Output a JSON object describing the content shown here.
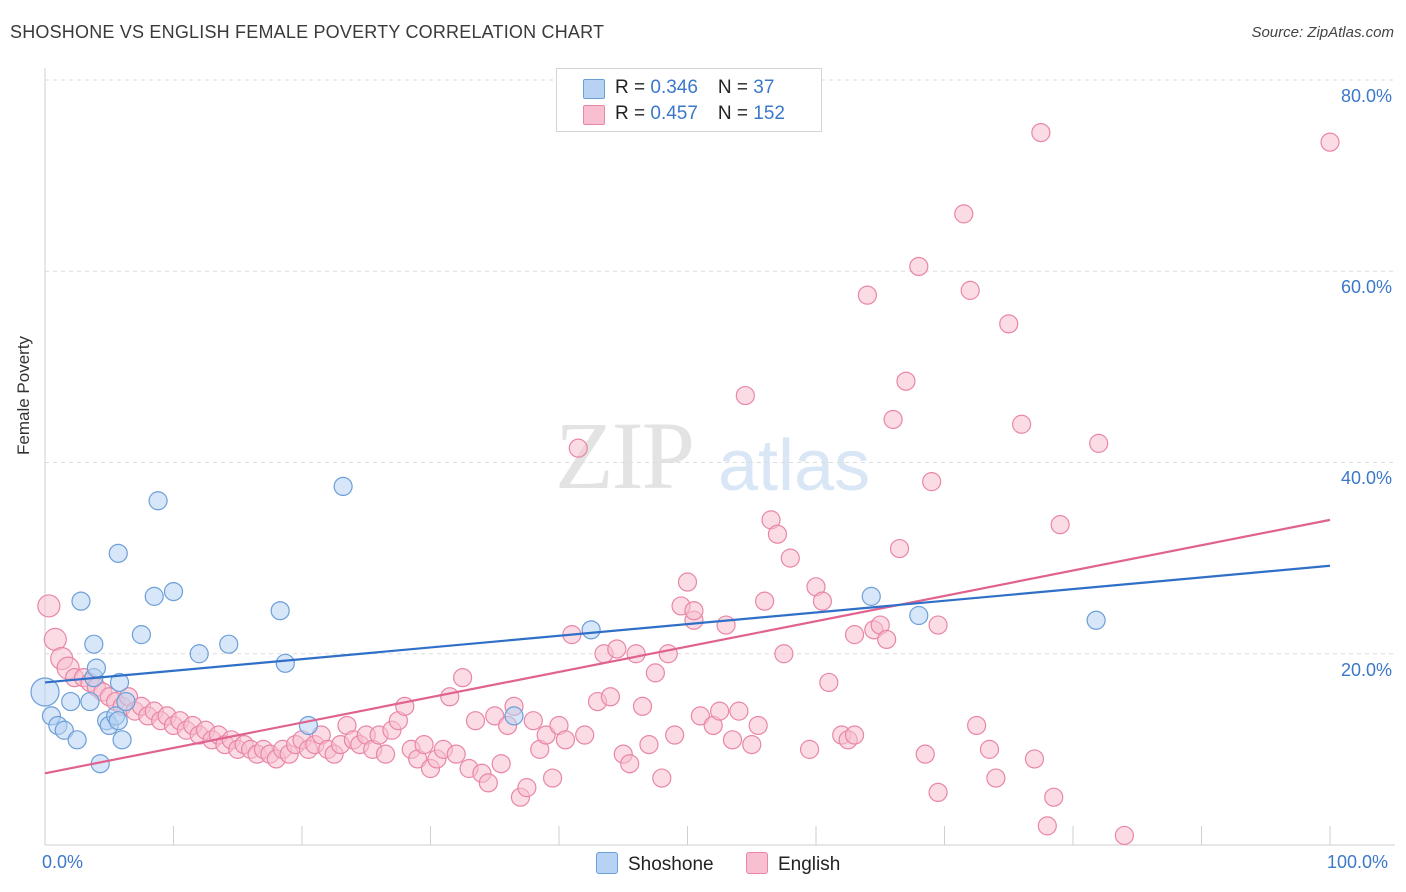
{
  "header": {
    "title": "SHOSHONE VS ENGLISH FEMALE POVERTY CORRELATION CHART",
    "source": "Source: ZipAtlas.com"
  },
  "watermark": {
    "zip": "ZIP",
    "atlas": "atlas"
  },
  "legend": {
    "rows": [
      {
        "r_label": "R = ",
        "r_value": "0.346",
        "n_label": "N = ",
        "n_value": " 37"
      },
      {
        "r_label": "R = ",
        "r_value": "0.457",
        "n_label": "N = ",
        "n_value": "152"
      }
    ],
    "bottom": [
      "Shoshone",
      "English"
    ]
  },
  "colors": {
    "shoshone_fill": "#b7d2f2",
    "shoshone_stroke": "#6b9fd8",
    "shoshone_line": "#2f6fc8",
    "english_fill": "#f7bfd0",
    "english_stroke": "#e986a6",
    "english_line": "#e0628f",
    "tick_label": "#3b78c9"
  },
  "chart_data": {
    "type": "scatter",
    "title": "SHOSHONE VS ENGLISH FEMALE POVERTY CORRELATION CHART",
    "xlabel": "",
    "ylabel": "Female Poverty",
    "xlim": [
      0,
      100
    ],
    "ylim": [
      0,
      80
    ],
    "x_tick_labels": [
      "0.0%",
      "100.0%"
    ],
    "y_ticks": [
      20,
      40,
      60,
      80
    ],
    "y_tick_labels": [
      "20.0%",
      "40.0%",
      "60.0%",
      "80.0%"
    ],
    "grid": "dashed horizontal",
    "series": [
      {
        "name": "Shoshone",
        "trend": {
          "x": [
            0,
            100
          ],
          "y": [
            17.0,
            29.2
          ]
        },
        "points": [
          [
            0.0,
            16.0
          ],
          [
            0.5,
            13.5
          ],
          [
            1.0,
            12.5
          ],
          [
            1.5,
            12.0
          ],
          [
            2.0,
            15.0
          ],
          [
            2.5,
            11.0
          ],
          [
            2.8,
            25.5
          ],
          [
            3.5,
            15.0
          ],
          [
            3.8,
            17.5
          ],
          [
            3.8,
            21.0
          ],
          [
            4.0,
            18.5
          ],
          [
            4.3,
            8.5
          ],
          [
            4.8,
            13.0
          ],
          [
            5.0,
            12.5
          ],
          [
            5.5,
            13.5
          ],
          [
            5.7,
            13.0
          ],
          [
            5.8,
            17.0
          ],
          [
            6.0,
            11.0
          ],
          [
            6.3,
            15.0
          ],
          [
            5.7,
            30.5
          ],
          [
            7.5,
            22.0
          ],
          [
            8.5,
            26.0
          ],
          [
            8.8,
            36.0
          ],
          [
            10.0,
            26.5
          ],
          [
            12.0,
            20.0
          ],
          [
            14.3,
            21.0
          ],
          [
            18.3,
            24.5
          ],
          [
            18.7,
            19.0
          ],
          [
            20.5,
            12.5
          ],
          [
            23.2,
            37.5
          ],
          [
            36.5,
            13.5
          ],
          [
            42.5,
            22.5
          ],
          [
            64.3,
            26.0
          ],
          [
            68.0,
            24.0
          ],
          [
            81.8,
            23.5
          ]
        ]
      },
      {
        "name": "English",
        "trend": {
          "x": [
            0,
            100
          ],
          "y": [
            7.5,
            34.0
          ]
        },
        "points": [
          [
            0.3,
            25.0
          ],
          [
            0.8,
            21.5
          ],
          [
            1.3,
            19.5
          ],
          [
            1.8,
            18.5
          ],
          [
            2.3,
            17.5
          ],
          [
            3.0,
            17.5
          ],
          [
            3.5,
            17.0
          ],
          [
            4.0,
            16.5
          ],
          [
            4.5,
            16.0
          ],
          [
            5.0,
            15.5
          ],
          [
            5.5,
            15.0
          ],
          [
            6.0,
            14.5
          ],
          [
            6.5,
            15.5
          ],
          [
            7.0,
            14.0
          ],
          [
            7.5,
            14.5
          ],
          [
            8.0,
            13.5
          ],
          [
            8.5,
            14.0
          ],
          [
            9.0,
            13.0
          ],
          [
            9.5,
            13.5
          ],
          [
            10.0,
            12.5
          ],
          [
            10.5,
            13.0
          ],
          [
            11.0,
            12.0
          ],
          [
            11.5,
            12.5
          ],
          [
            12.0,
            11.5
          ],
          [
            12.5,
            12.0
          ],
          [
            13.0,
            11.0
          ],
          [
            13.5,
            11.5
          ],
          [
            14.0,
            10.5
          ],
          [
            14.5,
            11.0
          ],
          [
            15.0,
            10.0
          ],
          [
            15.5,
            10.5
          ],
          [
            16.0,
            10.0
          ],
          [
            16.5,
            9.5
          ],
          [
            17.0,
            10.0
          ],
          [
            17.5,
            9.5
          ],
          [
            18.0,
            9.0
          ],
          [
            18.5,
            10.0
          ],
          [
            19.0,
            9.5
          ],
          [
            19.5,
            10.5
          ],
          [
            20.0,
            11.0
          ],
          [
            20.5,
            10.0
          ],
          [
            21.0,
            10.5
          ],
          [
            21.5,
            11.5
          ],
          [
            22.0,
            10.0
          ],
          [
            22.5,
            9.5
          ],
          [
            23.0,
            10.5
          ],
          [
            23.5,
            12.5
          ],
          [
            24.0,
            11.0
          ],
          [
            24.5,
            10.5
          ],
          [
            25.0,
            11.5
          ],
          [
            25.5,
            10.0
          ],
          [
            26.0,
            11.5
          ],
          [
            26.5,
            9.5
          ],
          [
            27.0,
            12.0
          ],
          [
            27.5,
            13.0
          ],
          [
            28.0,
            14.5
          ],
          [
            28.5,
            10.0
          ],
          [
            29.0,
            9.0
          ],
          [
            29.5,
            10.5
          ],
          [
            30.0,
            8.0
          ],
          [
            30.5,
            9.0
          ],
          [
            31.0,
            10.0
          ],
          [
            31.5,
            15.5
          ],
          [
            32.0,
            9.5
          ],
          [
            32.5,
            17.5
          ],
          [
            33.0,
            8.0
          ],
          [
            33.5,
            13.0
          ],
          [
            34.0,
            7.5
          ],
          [
            34.5,
            6.5
          ],
          [
            35.0,
            13.5
          ],
          [
            35.5,
            8.5
          ],
          [
            36.0,
            12.5
          ],
          [
            36.5,
            14.5
          ],
          [
            37.0,
            5.0
          ],
          [
            37.5,
            6.0
          ],
          [
            38.0,
            13.0
          ],
          [
            38.5,
            10.0
          ],
          [
            39.0,
            11.5
          ],
          [
            39.5,
            7.0
          ],
          [
            40.0,
            12.5
          ],
          [
            40.5,
            11.0
          ],
          [
            41.0,
            22.0
          ],
          [
            42.0,
            11.5
          ],
          [
            43.0,
            15.0
          ],
          [
            43.5,
            20.0
          ],
          [
            44.0,
            15.5
          ],
          [
            44.5,
            20.5
          ],
          [
            45.0,
            9.5
          ],
          [
            45.5,
            8.5
          ],
          [
            46.0,
            20.0
          ],
          [
            46.5,
            14.5
          ],
          [
            47.0,
            10.5
          ],
          [
            47.5,
            18.0
          ],
          [
            48.0,
            7.0
          ],
          [
            48.5,
            20.0
          ],
          [
            49.0,
            11.5
          ],
          [
            49.5,
            25.0
          ],
          [
            50.0,
            27.5
          ],
          [
            50.5,
            23.5
          ],
          [
            50.5,
            24.5
          ],
          [
            51.0,
            13.5
          ],
          [
            52.0,
            12.5
          ],
          [
            52.5,
            14.0
          ],
          [
            53.0,
            23.0
          ],
          [
            53.5,
            11.0
          ],
          [
            54.0,
            14.0
          ],
          [
            54.5,
            47.0
          ],
          [
            55.0,
            10.5
          ],
          [
            55.5,
            12.5
          ],
          [
            56.0,
            25.5
          ],
          [
            56.5,
            34.0
          ],
          [
            57.0,
            32.5
          ],
          [
            57.5,
            20.0
          ],
          [
            58.0,
            30.0
          ],
          [
            59.5,
            10.0
          ],
          [
            60.0,
            27.0
          ],
          [
            60.5,
            25.5
          ],
          [
            61.0,
            17.0
          ],
          [
            62.0,
            11.5
          ],
          [
            62.5,
            11.0
          ],
          [
            63.0,
            11.5
          ],
          [
            64.0,
            57.5
          ],
          [
            63.0,
            22.0
          ],
          [
            64.5,
            22.5
          ],
          [
            65.0,
            23.0
          ],
          [
            65.5,
            21.5
          ],
          [
            66.0,
            44.5
          ],
          [
            66.5,
            31.0
          ],
          [
            67.0,
            48.5
          ],
          [
            68.5,
            9.5
          ],
          [
            68.0,
            60.5
          ],
          [
            69.0,
            38.0
          ],
          [
            69.5,
            23.0
          ],
          [
            69.5,
            5.5
          ],
          [
            71.5,
            66.0
          ],
          [
            72.0,
            58.0
          ],
          [
            72.5,
            12.5
          ],
          [
            73.5,
            10.0
          ],
          [
            74.0,
            7.0
          ],
          [
            75.0,
            54.5
          ],
          [
            76.0,
            44.0
          ],
          [
            77.0,
            9.0
          ],
          [
            77.5,
            74.5
          ],
          [
            78.0,
            2.0
          ],
          [
            78.5,
            5.0
          ],
          [
            79.0,
            33.5
          ],
          [
            82.0,
            42.0
          ],
          [
            84.0,
            1.0
          ],
          [
            100.0,
            73.5
          ],
          [
            41.5,
            41.5
          ]
        ]
      }
    ]
  }
}
